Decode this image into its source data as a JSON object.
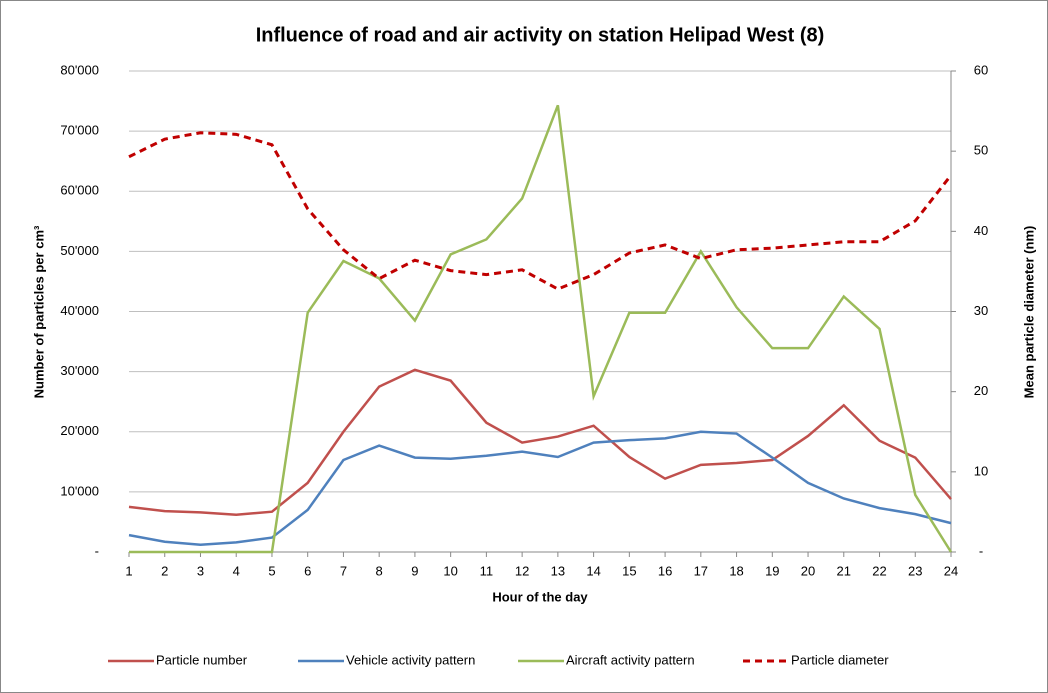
{
  "chart_data": {
    "type": "line",
    "title": "Influence of road and air activity on station Helipad West (8)",
    "x_label": "Hour of the day",
    "y_label": "Number of particles per cm³",
    "y2_label": "Mean particle diameter (nm)",
    "categories": [
      1,
      2,
      3,
      4,
      5,
      6,
      7,
      8,
      9,
      10,
      11,
      12,
      13,
      14,
      15,
      16,
      17,
      18,
      19,
      20,
      21,
      22,
      23,
      24
    ],
    "ylim": [
      0,
      80000
    ],
    "yticks": [
      {
        "value": 0,
        "label": "-"
      },
      {
        "value": 10000,
        "label": "10'000"
      },
      {
        "value": 20000,
        "label": "20'000"
      },
      {
        "value": 30000,
        "label": "30'000"
      },
      {
        "value": 40000,
        "label": "40'000"
      },
      {
        "value": 50000,
        "label": "50'000"
      },
      {
        "value": 60000,
        "label": "60'000"
      },
      {
        "value": 70000,
        "label": "70'000"
      },
      {
        "value": 80000,
        "label": "80'000"
      }
    ],
    "y2lim": [
      0,
      60
    ],
    "y2ticks": [
      {
        "value": 0,
        "label": "-"
      },
      10,
      20,
      30,
      40,
      50,
      60
    ],
    "grid": true,
    "legend": "bottom",
    "series": [
      {
        "name": "Particle number",
        "color": "#c0504d",
        "dash": false,
        "values": [
          7500,
          6800,
          6600,
          6200,
          6700,
          11500,
          20000,
          27500,
          30300,
          28500,
          21500,
          18200,
          19200,
          21000,
          15800,
          12200,
          14500,
          14800,
          15300,
          19300,
          24400,
          18500,
          15700,
          8800
        ]
      },
      {
        "name": "Vehicle activity pattern",
        "color": "#4f81bd",
        "dash": false,
        "values": [
          2800,
          1700,
          1200,
          1600,
          2400,
          7000,
          15300,
          17700,
          15700,
          15500,
          16000,
          16700,
          15800,
          18200,
          18600,
          18900,
          20000,
          19700,
          15700,
          11500,
          8900,
          7300,
          6300,
          4800
        ]
      },
      {
        "name": "Aircraft activity pattern",
        "color": "#9bbb59",
        "dash": false,
        "values": [
          0,
          0,
          0,
          0,
          0,
          39800,
          48400,
          45500,
          38500,
          49500,
          52000,
          58800,
          74300,
          25900,
          39800,
          39800,
          50000,
          40700,
          33900,
          33900,
          42500,
          37100,
          9500,
          0
        ]
      },
      {
        "name": "Particle diameter",
        "color": "#c00000",
        "dash": true,
        "axis": "y2",
        "values": [
          49.3,
          51.5,
          52.3,
          52.1,
          50.8,
          42.8,
          37.7,
          34.1,
          36.4,
          35.1,
          34.6,
          35.2,
          32.8,
          34.6,
          37.3,
          38.3,
          36.6,
          37.7,
          37.9,
          38.3,
          38.7,
          38.7,
          41.3,
          47.0
        ]
      }
    ]
  }
}
